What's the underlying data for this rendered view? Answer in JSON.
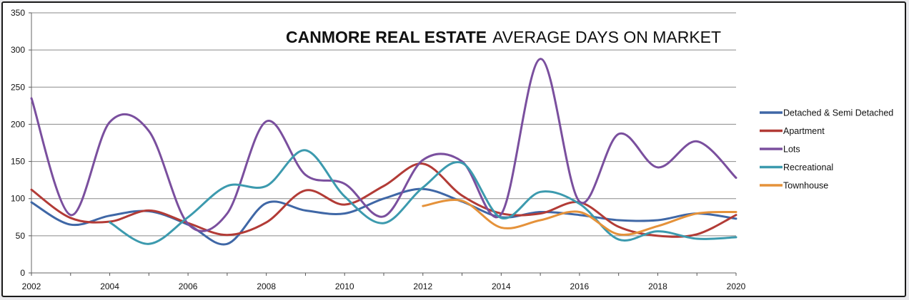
{
  "chart_data": {
    "type": "line",
    "title_bold": "CANMORE REAL ESTATE",
    "title_rest": "AVERAGE DAYS ON MARKET",
    "xlabel": "",
    "ylabel": "",
    "xlim": [
      2002,
      2020
    ],
    "ylim": [
      0,
      350
    ],
    "x_ticks": [
      "2002",
      "2004",
      "2006",
      "2008",
      "2010",
      "2012",
      "2014",
      "2016",
      "2018",
      "2020"
    ],
    "y_ticks": [
      "0",
      "50",
      "100",
      "150",
      "200",
      "250",
      "300",
      "350"
    ],
    "grid": true,
    "legend_position": "right",
    "smooth": true,
    "series": [
      {
        "name": "Detached & Semi Detached",
        "color": "#3F67A6",
        "x": [
          2002,
          2003,
          2004,
          2005,
          2006,
          2007,
          2008,
          2009,
          2010,
          2011,
          2012,
          2013,
          2014,
          2015,
          2016,
          2017,
          2018,
          2019,
          2020
        ],
        "values": [
          95,
          65,
          77,
          83,
          65,
          39,
          94,
          84,
          80,
          100,
          113,
          96,
          75,
          82,
          78,
          71,
          71,
          80,
          73
        ]
      },
      {
        "name": "Apartment",
        "color": "#B23B36",
        "x": [
          2002,
          2003,
          2004,
          2005,
          2006,
          2007,
          2008,
          2009,
          2010,
          2011,
          2012,
          2013,
          2014,
          2015,
          2016,
          2017,
          2018,
          2019,
          2020
        ],
        "values": [
          112,
          74,
          69,
          84,
          67,
          51,
          68,
          111,
          92,
          117,
          147,
          104,
          80,
          80,
          95,
          62,
          50,
          52,
          78
        ]
      },
      {
        "name": "Lots",
        "color": "#7A4F9E",
        "x": [
          2002,
          2003,
          2004,
          2005,
          2006,
          2007,
          2008,
          2009,
          2010,
          2011,
          2012,
          2013,
          2014,
          2015,
          2016,
          2017,
          2018,
          2019,
          2020
        ],
        "values": [
          235,
          78,
          203,
          191,
          66,
          80,
          204,
          132,
          120,
          76,
          152,
          150,
          79,
          288,
          96,
          187,
          142,
          177,
          128
        ]
      },
      {
        "name": "Recreational",
        "color": "#3C9AAE",
        "x": [
          2004,
          2005,
          2006,
          2007,
          2008,
          2009,
          2010,
          2011,
          2012,
          2013,
          2014,
          2015,
          2016,
          2017,
          2018,
          2019,
          2020
        ],
        "values": [
          68,
          39,
          75,
          117,
          117,
          165,
          103,
          67,
          115,
          148,
          74,
          109,
          93,
          45,
          56,
          46,
          48
        ]
      },
      {
        "name": "Townhouse",
        "color": "#E5923A",
        "x": [
          2012,
          2013,
          2014,
          2015,
          2016,
          2017,
          2018,
          2019,
          2020
        ],
        "values": [
          90,
          97,
          61,
          71,
          82,
          52,
          63,
          80,
          82
        ]
      }
    ]
  }
}
